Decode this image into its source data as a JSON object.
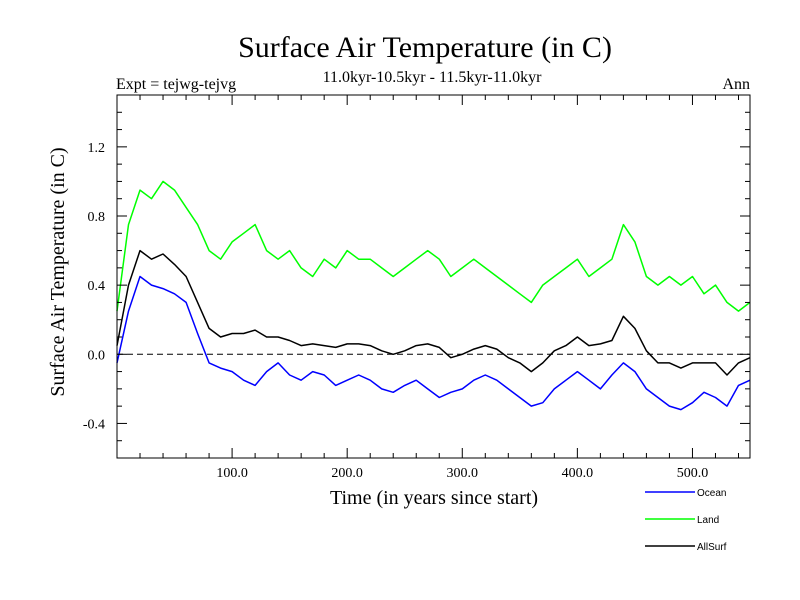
{
  "chart_data": {
    "type": "line",
    "title": "Surface Air Temperature (in C)",
    "subtitle": "11.0kyr-10.5kyr - 11.5kyr-11.0kyr",
    "expt_label": "Expt = tejwg-tejvg",
    "season_label": "Ann",
    "xlabel": "Time (in years since start)",
    "ylabel": "Surface Air Temperature (in C)",
    "xlim": [
      0,
      550
    ],
    "ylim": [
      -0.6,
      1.5
    ],
    "x_ticks": [
      100,
      200,
      300,
      400,
      500
    ],
    "x_tick_labels": [
      "100.0",
      "200.0",
      "300.0",
      "400.0",
      "500.0"
    ],
    "y_ticks": [
      -0.4,
      0.0,
      0.4,
      0.8,
      1.2
    ],
    "y_tick_labels": [
      "-0.4",
      "0.0",
      "0.4",
      "0.8",
      "1.2"
    ],
    "zero_line": true,
    "x": [
      0,
      10,
      20,
      30,
      40,
      50,
      60,
      70,
      80,
      90,
      100,
      110,
      120,
      130,
      140,
      150,
      160,
      170,
      180,
      190,
      200,
      210,
      220,
      230,
      240,
      250,
      260,
      270,
      280,
      290,
      300,
      310,
      320,
      330,
      340,
      350,
      360,
      370,
      380,
      390,
      400,
      410,
      420,
      430,
      440,
      450,
      460,
      470,
      480,
      490,
      500,
      510,
      520,
      530,
      540,
      550
    ],
    "series": [
      {
        "name": "Ocean",
        "color": "#0000ff",
        "values": [
          -0.05,
          0.25,
          0.45,
          0.4,
          0.38,
          0.35,
          0.3,
          0.12,
          -0.05,
          -0.08,
          -0.1,
          -0.15,
          -0.18,
          -0.1,
          -0.05,
          -0.12,
          -0.15,
          -0.1,
          -0.12,
          -0.18,
          -0.15,
          -0.12,
          -0.15,
          -0.2,
          -0.22,
          -0.18,
          -0.15,
          -0.2,
          -0.25,
          -0.22,
          -0.2,
          -0.15,
          -0.12,
          -0.15,
          -0.2,
          -0.25,
          -0.3,
          -0.28,
          -0.2,
          -0.15,
          -0.1,
          -0.15,
          -0.2,
          -0.12,
          -0.05,
          -0.1,
          -0.2,
          -0.25,
          -0.3,
          -0.32,
          -0.28,
          -0.22,
          -0.25,
          -0.3,
          -0.18,
          -0.15
        ]
      },
      {
        "name": "Land",
        "color": "#00ff00",
        "values": [
          0.25,
          0.75,
          0.95,
          0.9,
          1.0,
          0.95,
          0.85,
          0.75,
          0.6,
          0.55,
          0.65,
          0.7,
          0.75,
          0.6,
          0.55,
          0.6,
          0.5,
          0.45,
          0.55,
          0.5,
          0.6,
          0.55,
          0.55,
          0.5,
          0.45,
          0.5,
          0.55,
          0.6,
          0.55,
          0.45,
          0.5,
          0.55,
          0.5,
          0.45,
          0.4,
          0.35,
          0.3,
          0.4,
          0.45,
          0.5,
          0.55,
          0.45,
          0.5,
          0.55,
          0.75,
          0.65,
          0.45,
          0.4,
          0.45,
          0.4,
          0.45,
          0.35,
          0.4,
          0.3,
          0.25,
          0.3
        ]
      },
      {
        "name": "AllSurf",
        "color": "#000000",
        "values": [
          0.05,
          0.4,
          0.6,
          0.55,
          0.58,
          0.52,
          0.45,
          0.3,
          0.15,
          0.1,
          0.12,
          0.12,
          0.14,
          0.1,
          0.1,
          0.08,
          0.05,
          0.06,
          0.05,
          0.04,
          0.06,
          0.06,
          0.05,
          0.02,
          0.0,
          0.02,
          0.05,
          0.06,
          0.04,
          -0.02,
          0.0,
          0.03,
          0.05,
          0.03,
          -0.02,
          -0.05,
          -0.1,
          -0.05,
          0.02,
          0.05,
          0.1,
          0.05,
          0.06,
          0.08,
          0.22,
          0.15,
          0.02,
          -0.05,
          -0.05,
          -0.08,
          -0.05,
          -0.05,
          -0.05,
          -0.12,
          -0.05,
          -0.02
        ]
      }
    ],
    "legend_position": "bottom-right"
  }
}
